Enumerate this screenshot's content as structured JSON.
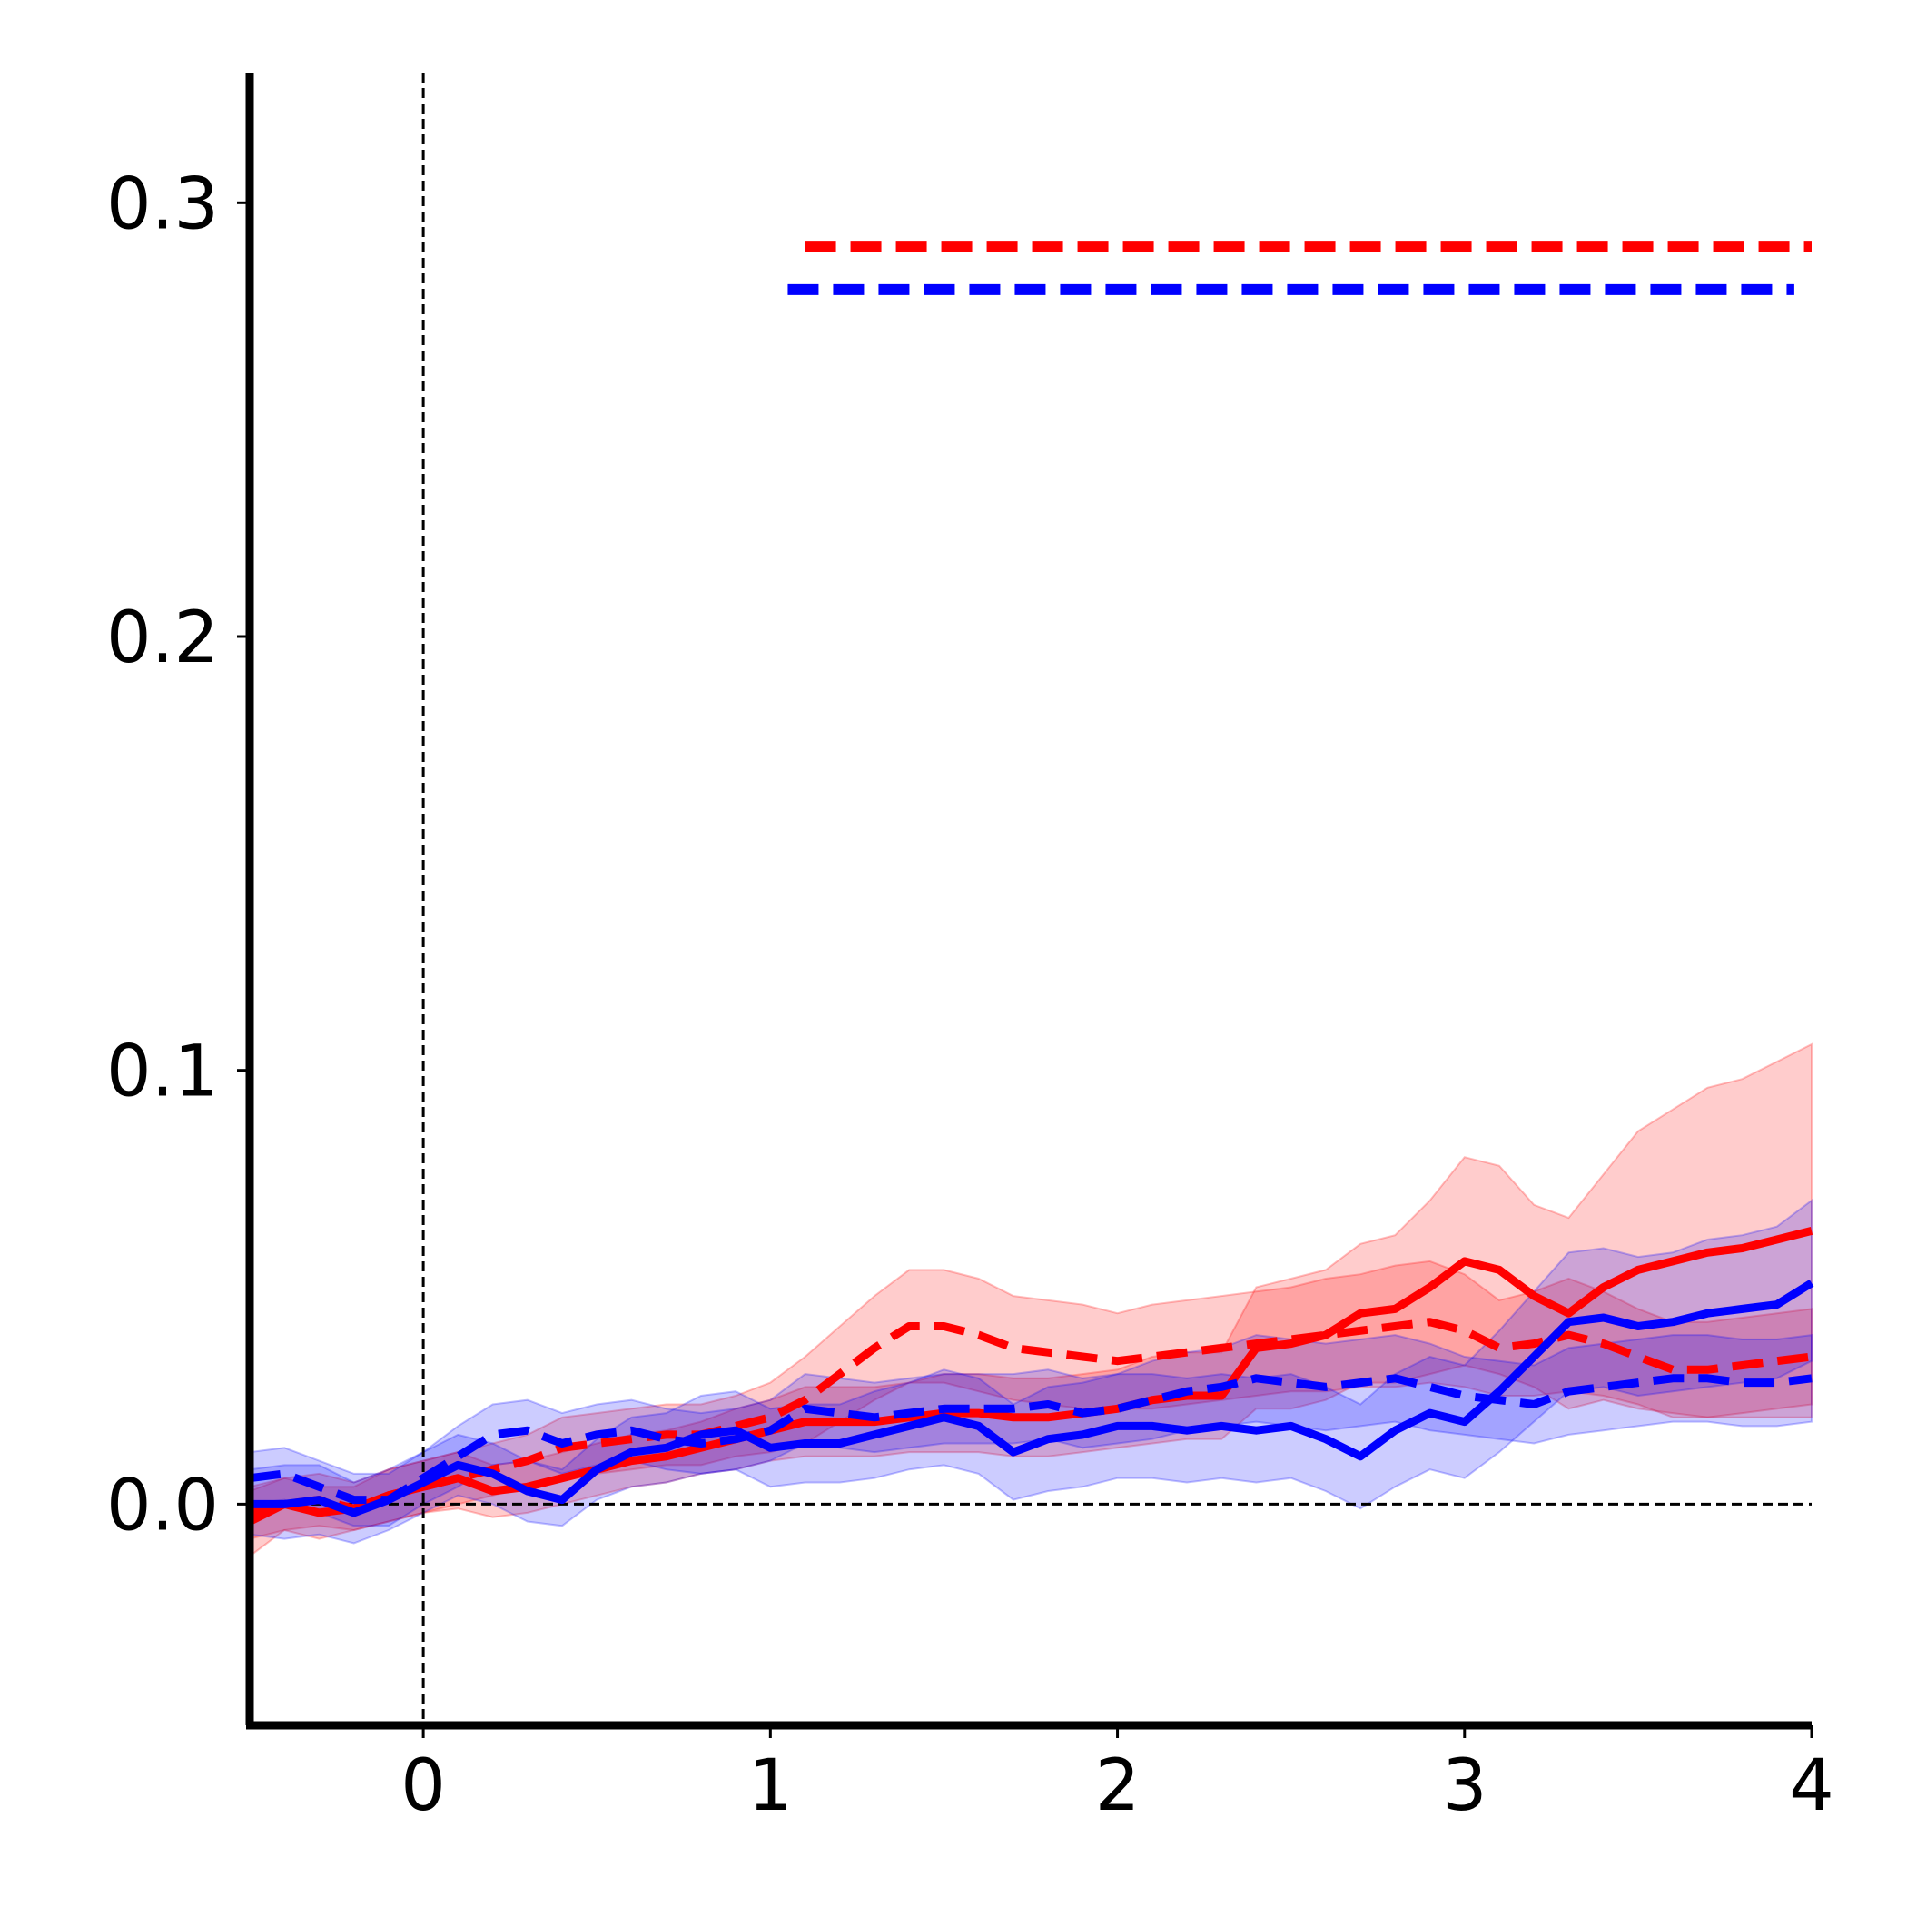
{
  "chart_data": {
    "type": "line",
    "title": "",
    "xlabel": "",
    "ylabel": "",
    "xlim": [
      -0.5,
      4.0
    ],
    "ylim": [
      -0.051,
      0.33
    ],
    "xticks": [
      0,
      1,
      2,
      3,
      4
    ],
    "xtick_labels": [
      "0",
      "1",
      "2",
      "3",
      "4"
    ],
    "yticks": [
      0.0,
      0.1,
      0.2,
      0.3
    ],
    "ytick_labels": [
      "0.0",
      "0.1",
      "0.2",
      "0.3"
    ],
    "grid": false,
    "legend": "none",
    "reference_lines": [
      {
        "orientation": "vertical",
        "value": 0,
        "style": "dashed",
        "color": "#000000"
      },
      {
        "orientation": "horizontal",
        "value": 0,
        "style": "dashed",
        "color": "#000000"
      }
    ],
    "significance_bars": [
      {
        "color": "#ff0000",
        "y": 0.29,
        "x_start": 1.1,
        "x_end": 4.0
      },
      {
        "color": "#0000ff",
        "y": 0.28,
        "x_start": 1.05,
        "x_end": 3.95
      }
    ],
    "series": [
      {
        "color": "#ff0000",
        "style": "solid",
        "x": [
          -0.5,
          -0.4,
          -0.3,
          -0.2,
          -0.1,
          0.0,
          0.1,
          0.2,
          0.3,
          0.4,
          0.5,
          0.6,
          0.7,
          0.8,
          0.9,
          1.0,
          1.1,
          1.2,
          1.3,
          1.4,
          1.5,
          1.6,
          1.7,
          1.8,
          1.9,
          2.0,
          2.1,
          2.2,
          2.3,
          2.4,
          2.5,
          2.6,
          2.7,
          2.8,
          2.9,
          3.0,
          3.1,
          3.2,
          3.3,
          3.4,
          3.5,
          3.6,
          3.7,
          3.8,
          3.9,
          4.0
        ],
        "y": [
          -0.004,
          0.0,
          -0.002,
          -0.001,
          0.002,
          0.004,
          0.006,
          0.003,
          0.004,
          0.006,
          0.008,
          0.01,
          0.011,
          0.013,
          0.015,
          0.017,
          0.019,
          0.019,
          0.019,
          0.02,
          0.021,
          0.021,
          0.02,
          0.02,
          0.021,
          0.022,
          0.024,
          0.025,
          0.025,
          0.036,
          0.037,
          0.039,
          0.044,
          0.045,
          0.05,
          0.056,
          0.054,
          0.048,
          0.044,
          0.05,
          0.054,
          0.056,
          0.058,
          0.059,
          0.061,
          0.063
        ],
        "ci_low": [
          -0.012,
          -0.006,
          -0.008,
          -0.006,
          -0.004,
          -0.002,
          -0.001,
          -0.003,
          -0.002,
          0.0,
          0.002,
          0.004,
          0.005,
          0.007,
          0.008,
          0.01,
          0.011,
          0.011,
          0.011,
          0.012,
          0.012,
          0.012,
          0.011,
          0.011,
          0.012,
          0.013,
          0.014,
          0.015,
          0.015,
          0.022,
          0.022,
          0.024,
          0.028,
          0.028,
          0.03,
          0.032,
          0.03,
          0.027,
          0.022,
          0.024,
          0.022,
          0.021,
          0.02,
          0.02,
          0.02,
          0.02
        ],
        "ci_high": [
          0.003,
          0.006,
          0.004,
          0.004,
          0.008,
          0.01,
          0.012,
          0.009,
          0.01,
          0.012,
          0.014,
          0.016,
          0.017,
          0.019,
          0.022,
          0.024,
          0.027,
          0.027,
          0.027,
          0.028,
          0.03,
          0.03,
          0.029,
          0.029,
          0.03,
          0.031,
          0.034,
          0.035,
          0.035,
          0.05,
          0.052,
          0.054,
          0.06,
          0.062,
          0.07,
          0.08,
          0.078,
          0.069,
          0.066,
          0.076,
          0.086,
          0.091,
          0.096,
          0.098,
          0.102,
          0.106
        ]
      },
      {
        "color": "#ff0000",
        "style": "dashed",
        "x": [
          -0.5,
          -0.4,
          -0.3,
          -0.2,
          -0.1,
          0.0,
          0.1,
          0.2,
          0.3,
          0.4,
          0.5,
          0.6,
          0.7,
          0.8,
          0.9,
          1.0,
          1.1,
          1.2,
          1.3,
          1.4,
          1.5,
          1.6,
          1.7,
          1.8,
          1.9,
          2.0,
          2.1,
          2.2,
          2.3,
          2.4,
          2.5,
          2.6,
          2.7,
          2.8,
          2.9,
          3.0,
          3.1,
          3.2,
          3.3,
          3.4,
          3.5,
          3.6,
          3.7,
          3.8,
          3.9,
          4.0
        ],
        "y": [
          -0.002,
          0.0,
          0.001,
          -0.001,
          0.002,
          0.004,
          0.006,
          0.008,
          0.01,
          0.013,
          0.014,
          0.015,
          0.016,
          0.016,
          0.018,
          0.02,
          0.024,
          0.03,
          0.036,
          0.041,
          0.041,
          0.039,
          0.036,
          0.035,
          0.034,
          0.033,
          0.034,
          0.035,
          0.036,
          0.037,
          0.038,
          0.039,
          0.04,
          0.041,
          0.042,
          0.04,
          0.036,
          0.037,
          0.039,
          0.037,
          0.034,
          0.031,
          0.031,
          0.032,
          0.033,
          0.034
        ],
        "ci_low": [
          -0.008,
          -0.006,
          -0.005,
          -0.006,
          -0.004,
          -0.002,
          0.0,
          0.002,
          0.004,
          0.006,
          0.007,
          0.008,
          0.009,
          0.009,
          0.011,
          0.012,
          0.014,
          0.019,
          0.024,
          0.028,
          0.028,
          0.026,
          0.024,
          0.023,
          0.022,
          0.022,
          0.022,
          0.023,
          0.024,
          0.025,
          0.026,
          0.026,
          0.027,
          0.027,
          0.028,
          0.027,
          0.025,
          0.025,
          0.026,
          0.025,
          0.023,
          0.02,
          0.02,
          0.021,
          0.022,
          0.023
        ],
        "ci_high": [
          0.004,
          0.006,
          0.007,
          0.005,
          0.008,
          0.01,
          0.012,
          0.014,
          0.016,
          0.02,
          0.021,
          0.022,
          0.023,
          0.023,
          0.025,
          0.028,
          0.034,
          0.041,
          0.048,
          0.054,
          0.054,
          0.052,
          0.048,
          0.047,
          0.046,
          0.044,
          0.046,
          0.047,
          0.048,
          0.049,
          0.05,
          0.052,
          0.053,
          0.055,
          0.056,
          0.053,
          0.047,
          0.049,
          0.052,
          0.049,
          0.045,
          0.042,
          0.042,
          0.043,
          0.044,
          0.045
        ]
      },
      {
        "color": "#0000ff",
        "style": "solid",
        "x": [
          -0.5,
          -0.4,
          -0.3,
          -0.2,
          -0.1,
          0.0,
          0.1,
          0.2,
          0.3,
          0.4,
          0.5,
          0.6,
          0.7,
          0.8,
          0.9,
          1.0,
          1.1,
          1.2,
          1.3,
          1.4,
          1.5,
          1.6,
          1.7,
          1.8,
          1.9,
          2.0,
          2.1,
          2.2,
          2.3,
          2.4,
          2.5,
          2.6,
          2.7,
          2.8,
          2.9,
          3.0,
          3.1,
          3.2,
          3.3,
          3.4,
          3.5,
          3.6,
          3.7,
          3.8,
          3.9,
          4.0
        ],
        "y": [
          0.0,
          0.0,
          0.001,
          -0.002,
          0.001,
          0.005,
          0.009,
          0.007,
          0.003,
          0.001,
          0.008,
          0.012,
          0.013,
          0.016,
          0.017,
          0.013,
          0.014,
          0.014,
          0.016,
          0.018,
          0.02,
          0.018,
          0.012,
          0.015,
          0.016,
          0.018,
          0.018,
          0.017,
          0.018,
          0.017,
          0.018,
          0.015,
          0.011,
          0.017,
          0.021,
          0.019,
          0.026,
          0.034,
          0.042,
          0.043,
          0.041,
          0.042,
          0.044,
          0.045,
          0.046,
          0.051
        ],
        "ci_low": [
          -0.007,
          -0.008,
          -0.007,
          -0.009,
          -0.006,
          -0.002,
          0.002,
          0.0,
          -0.004,
          -0.005,
          0.001,
          0.004,
          0.005,
          0.007,
          0.008,
          0.004,
          0.005,
          0.005,
          0.006,
          0.008,
          0.009,
          0.007,
          0.001,
          0.003,
          0.004,
          0.006,
          0.006,
          0.005,
          0.006,
          0.005,
          0.006,
          0.003,
          -0.001,
          0.004,
          0.008,
          0.006,
          0.012,
          0.019,
          0.026,
          0.027,
          0.025,
          0.026,
          0.027,
          0.028,
          0.029,
          0.033
        ],
        "ci_high": [
          0.008,
          0.009,
          0.009,
          0.005,
          0.008,
          0.012,
          0.016,
          0.014,
          0.01,
          0.008,
          0.015,
          0.02,
          0.021,
          0.025,
          0.026,
          0.022,
          0.023,
          0.023,
          0.026,
          0.028,
          0.031,
          0.029,
          0.023,
          0.027,
          0.028,
          0.03,
          0.03,
          0.029,
          0.03,
          0.029,
          0.03,
          0.027,
          0.023,
          0.03,
          0.034,
          0.032,
          0.04,
          0.049,
          0.058,
          0.059,
          0.057,
          0.058,
          0.061,
          0.062,
          0.064,
          0.07
        ]
      },
      {
        "color": "#0000ff",
        "style": "dashed",
        "x": [
          -0.5,
          -0.4,
          -0.3,
          -0.2,
          -0.1,
          0.0,
          0.1,
          0.2,
          0.3,
          0.4,
          0.5,
          0.6,
          0.7,
          0.8,
          0.9,
          1.0,
          1.1,
          1.2,
          1.3,
          1.4,
          1.5,
          1.6,
          1.7,
          1.8,
          1.9,
          2.0,
          2.1,
          2.2,
          2.3,
          2.4,
          2.5,
          2.6,
          2.7,
          2.8,
          2.9,
          3.0,
          3.1,
          3.2,
          3.3,
          3.4,
          3.5,
          3.6,
          3.7,
          3.8,
          3.9,
          4.0
        ],
        "y": [
          0.006,
          0.007,
          0.004,
          0.001,
          0.001,
          0.006,
          0.011,
          0.016,
          0.017,
          0.014,
          0.016,
          0.017,
          0.015,
          0.014,
          0.015,
          0.017,
          0.022,
          0.021,
          0.02,
          0.021,
          0.022,
          0.022,
          0.022,
          0.023,
          0.021,
          0.022,
          0.024,
          0.026,
          0.027,
          0.029,
          0.028,
          0.027,
          0.028,
          0.029,
          0.027,
          0.025,
          0.024,
          0.023,
          0.026,
          0.027,
          0.028,
          0.029,
          0.029,
          0.028,
          0.028,
          0.029
        ],
        "ci_low": [
          0.0,
          0.001,
          -0.002,
          -0.005,
          -0.005,
          0.0,
          0.004,
          0.009,
          0.01,
          0.007,
          0.009,
          0.01,
          0.008,
          0.007,
          0.008,
          0.01,
          0.014,
          0.013,
          0.012,
          0.013,
          0.014,
          0.014,
          0.014,
          0.015,
          0.013,
          0.014,
          0.015,
          0.017,
          0.018,
          0.019,
          0.018,
          0.017,
          0.018,
          0.019,
          0.017,
          0.016,
          0.015,
          0.014,
          0.016,
          0.017,
          0.018,
          0.019,
          0.019,
          0.018,
          0.018,
          0.019
        ],
        "ci_high": [
          0.012,
          0.013,
          0.01,
          0.007,
          0.007,
          0.012,
          0.018,
          0.023,
          0.024,
          0.021,
          0.023,
          0.024,
          0.022,
          0.021,
          0.022,
          0.024,
          0.03,
          0.029,
          0.028,
          0.029,
          0.03,
          0.03,
          0.03,
          0.031,
          0.029,
          0.03,
          0.033,
          0.035,
          0.036,
          0.039,
          0.038,
          0.037,
          0.038,
          0.039,
          0.037,
          0.034,
          0.033,
          0.032,
          0.036,
          0.037,
          0.038,
          0.039,
          0.039,
          0.038,
          0.038,
          0.039
        ]
      }
    ]
  }
}
